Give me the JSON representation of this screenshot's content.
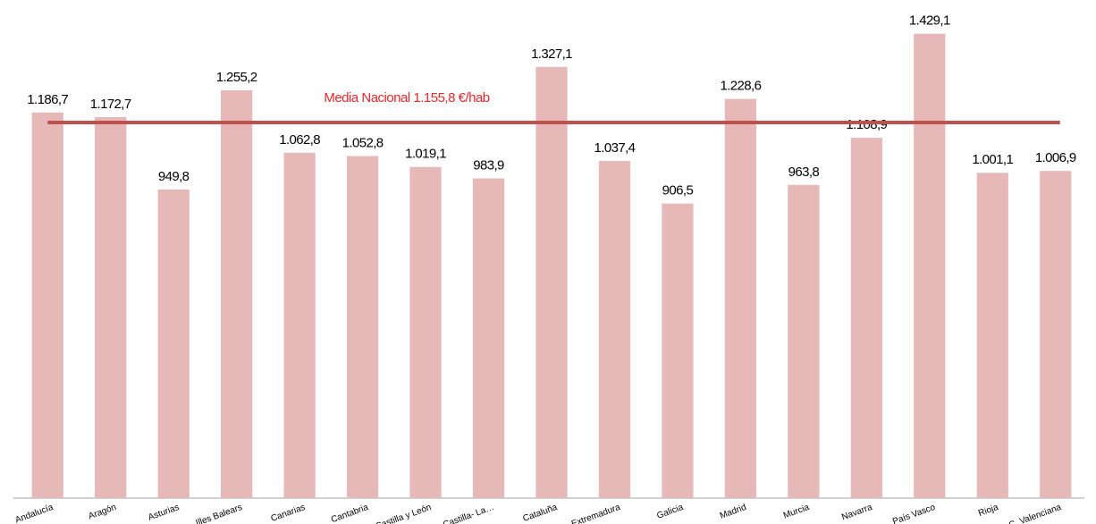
{
  "chart_data": {
    "type": "bar",
    "categories": [
      "Andalucía",
      "Aragón",
      "Asturias",
      "Illes Balears",
      "Canarias",
      "Cantabria",
      "Castilla y León",
      "Castilla- La…",
      "Cataluña",
      "Extremadura",
      "Galicia",
      "Madrid",
      "Murcia",
      "Navarra",
      "País Vasco",
      "Rioja",
      "C. Valenciana"
    ],
    "values": [
      1186.7,
      1172.7,
      949.8,
      1255.2,
      1062.8,
      1052.8,
      1019.1,
      983.9,
      1327.1,
      1037.4,
      906.5,
      1228.6,
      963.8,
      1108.9,
      1429.1,
      1001.1,
      1006.9
    ],
    "value_labels": [
      "1.186,7",
      "1.172,7",
      "949,8",
      "1.255,2",
      "1.062,8",
      "1.052,8",
      "1.019,1",
      "983,9",
      "1.327,1",
      "1.037,4",
      "906,5",
      "1.228,6",
      "963,8",
      "1.108,9",
      "1.429,1",
      "1.001,1",
      "1.006,9"
    ],
    "color": "#e6b9b8",
    "ylim": [
      0,
      1500
    ],
    "reference_line": {
      "value": 1155.8,
      "label": "Media Nacional  1.155,8 €/hab",
      "color": "#c0504d",
      "label_color": "#e8282b"
    }
  }
}
